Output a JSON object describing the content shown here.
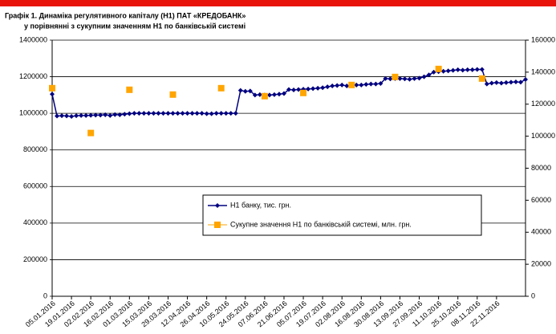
{
  "chart_data": {
    "type": "line",
    "title": "Графік 1. Динаміка регулятивного капіталу (Н1) ПАТ «КРЕДОБАНК»",
    "subtitle": "у порівнянні з сукупним значенням Н1 по банківській системі",
    "categories": [
      "05.01.2016",
      null,
      null,
      null,
      "19.01.2016",
      null,
      null,
      null,
      "02.02.2016",
      null,
      null,
      null,
      "16.02.2016",
      null,
      null,
      null,
      "01.03.2016",
      null,
      null,
      null,
      "15.03.2016",
      null,
      null,
      null,
      "29.03.2016",
      null,
      null,
      null,
      "12.04.2016",
      null,
      null,
      null,
      "26.04.2016",
      null,
      null,
      null,
      "10.05.2016",
      null,
      null,
      null,
      "24.05.2016",
      null,
      null,
      null,
      "07.06.2016",
      null,
      null,
      null,
      "21.06.2016",
      null,
      null,
      null,
      "05.07.2016",
      null,
      null,
      null,
      "19.07.2016",
      null,
      null,
      null,
      "02.08.2016",
      null,
      null,
      null,
      "16.08.2016",
      null,
      null,
      null,
      "30.08.2016",
      null,
      null,
      null,
      "13.09.2016",
      null,
      null,
      null,
      "27.09.2016",
      null,
      null,
      null,
      "11.10.2016",
      null,
      null,
      null,
      "25.10.2016",
      null,
      null,
      null,
      "08.11.2016",
      null,
      null,
      null,
      "22.11.2016",
      null,
      null,
      null,
      null,
      null,
      null
    ],
    "series": [
      {
        "name": "Н1 банку, тис. грн.",
        "color": "#000080",
        "marker": "diamond",
        "line": true,
        "values": [
          1105000,
          985000,
          987000,
          986000,
          983000,
          987000,
          988000,
          988000,
          989000,
          990000,
          990000,
          992000,
          988000,
          993000,
          992000,
          995000,
          998000,
          1000000,
          1000000,
          1000000,
          1000000,
          1000000,
          1000000,
          1000000,
          1000000,
          1000000,
          1000000,
          1000000,
          1000000,
          1000000,
          1000000,
          1000000,
          998000,
          998000,
          1000000,
          1000000,
          1000000,
          1000000,
          1000000,
          1125000,
          1120000,
          1122000,
          1100000,
          1102000,
          1100000,
          1100000,
          1102000,
          1105000,
          1108000,
          1130000,
          1128000,
          1130000,
          1132000,
          1133000,
          1135000,
          1137000,
          1140000,
          1145000,
          1150000,
          1152000,
          1155000,
          1150000,
          1153000,
          1155000,
          1155000,
          1158000,
          1160000,
          1160000,
          1163000,
          1190000,
          1188000,
          1190000,
          1190000,
          1188000,
          1186000,
          1190000,
          1192000,
          1200000,
          1210000,
          1225000,
          1228000,
          1230000,
          1232000,
          1235000,
          1238000,
          1236000,
          1238000,
          1238000,
          1240000,
          1240000,
          1160000,
          1165000,
          1168000,
          1165000,
          1168000,
          1170000,
          1172000,
          1170000,
          1185000
        ]
      },
      {
        "name": "Сукупне значення Н1 по банківській системі, млн. грн.",
        "color": "#ffa500",
        "marker": "square",
        "line": false,
        "axis": "y2",
        "values": [
          130000,
          null,
          null,
          null,
          null,
          null,
          null,
          null,
          102000,
          null,
          null,
          null,
          null,
          null,
          null,
          null,
          129000,
          null,
          null,
          null,
          null,
          null,
          null,
          null,
          null,
          126000,
          null,
          null,
          null,
          null,
          null,
          null,
          null,
          null,
          null,
          130000,
          null,
          null,
          null,
          null,
          null,
          null,
          null,
          null,
          125000,
          null,
          null,
          null,
          null,
          null,
          null,
          null,
          127000,
          null,
          null,
          null,
          null,
          null,
          null,
          null,
          null,
          null,
          132000,
          null,
          null,
          null,
          null,
          null,
          null,
          null,
          null,
          137000,
          null,
          null,
          null,
          null,
          null,
          null,
          null,
          null,
          142000,
          null,
          null,
          null,
          null,
          null,
          null,
          null,
          null,
          136000,
          null,
          null,
          null,
          null,
          null,
          null,
          null,
          null,
          null
        ]
      }
    ],
    "ylim": [
      0,
      1400000
    ],
    "yticks": [
      0,
      200000,
      400000,
      600000,
      800000,
      1000000,
      1200000,
      1400000
    ],
    "y2lim": [
      0,
      160000
    ],
    "y2ticks": [
      0,
      20000,
      40000,
      60000,
      80000,
      100000,
      120000,
      140000,
      160000
    ],
    "grid": true,
    "legend": "center"
  }
}
